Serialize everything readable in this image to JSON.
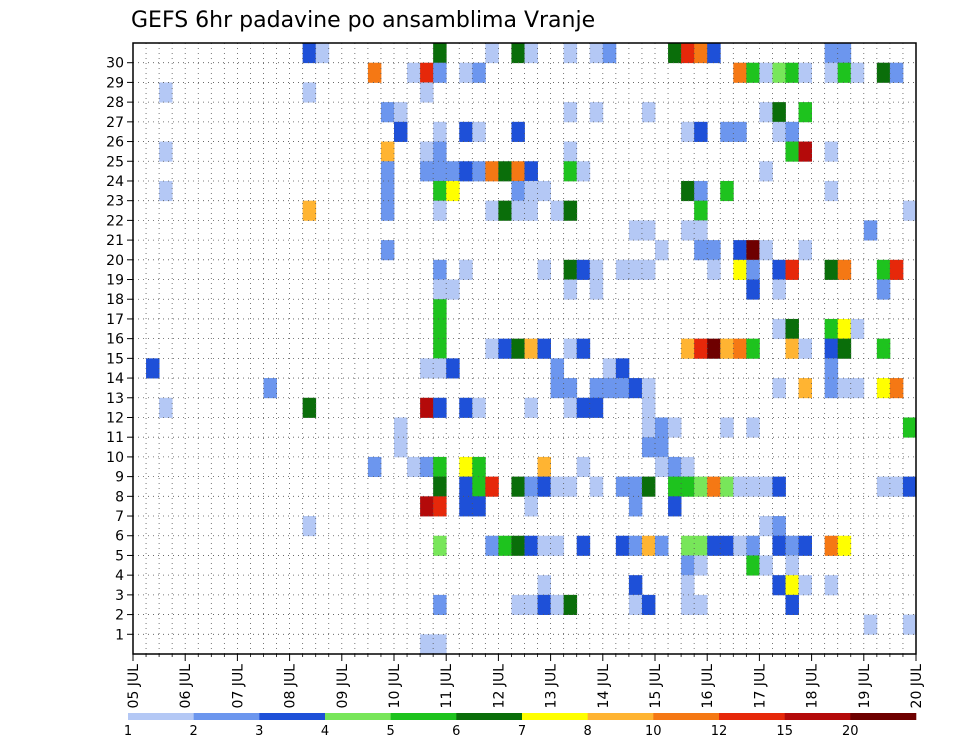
{
  "chart_data": {
    "type": "heatmap",
    "title": "GEFS 6hr padavine po ansamblima Vranje",
    "x_labels": [
      "05 JUL",
      "06 JUL",
      "07 JUL",
      "08 JUL",
      "09 JUL",
      "10 JUL",
      "11 JUL",
      "12 JUL",
      "13 JUL",
      "14 JUL",
      "15 JUL",
      "16 JUL",
      "17 JUL",
      "18 JUL",
      "19 JUL",
      "20 JUL"
    ],
    "x_steps_per_label": 4,
    "y_labels": [
      "1",
      "2",
      "3",
      "4",
      "5",
      "6",
      "7",
      "8",
      "9",
      "10",
      "11",
      "12",
      "13",
      "14",
      "15",
      "16",
      "17",
      "18",
      "19",
      "20",
      "21",
      "22",
      "23",
      "24",
      "25",
      "26",
      "27",
      "28",
      "29",
      "30"
    ],
    "grid": true,
    "legend_position": "bottom",
    "color_levels": [
      {
        "label": "1",
        "color": "#b4c8f5"
      },
      {
        "label": "2",
        "color": "#6c96ee"
      },
      {
        "label": "3",
        "color": "#1e50d8"
      },
      {
        "label": "4",
        "color": "#78e65a"
      },
      {
        "label": "5",
        "color": "#1ec31e"
      },
      {
        "label": "6",
        "color": "#0a6e0a"
      },
      {
        "label": "7",
        "color": "#ffff00"
      },
      {
        "label": "8",
        "color": "#ffb432"
      },
      {
        "label": "10",
        "color": "#f57814"
      },
      {
        "label": "12",
        "color": "#e6280a"
      },
      {
        "label": "15",
        "color": "#b40a0a"
      },
      {
        "label": "20",
        "color": "#6e0000"
      }
    ],
    "colorbar_labels": [
      "1",
      "2",
      "3",
      "4",
      "5",
      "6",
      "7",
      "8",
      "10",
      "12",
      "15",
      "20"
    ],
    "cells_note": "[x_step, member, level_index]",
    "cells": [
      [
        13,
        30,
        2
      ],
      [
        14,
        30,
        0
      ],
      [
        23,
        30,
        5
      ],
      [
        27,
        30,
        0
      ],
      [
        29,
        30,
        5
      ],
      [
        30,
        30,
        0
      ],
      [
        33,
        30,
        0
      ],
      [
        35,
        30,
        0
      ],
      [
        36,
        30,
        1
      ],
      [
        41,
        30,
        5
      ],
      [
        42,
        30,
        9
      ],
      [
        43,
        30,
        8
      ],
      [
        44,
        30,
        2
      ],
      [
        53,
        30,
        1
      ],
      [
        54,
        30,
        1
      ],
      [
        18,
        29,
        8
      ],
      [
        21,
        29,
        0
      ],
      [
        22,
        29,
        9
      ],
      [
        23,
        29,
        1
      ],
      [
        25,
        29,
        0
      ],
      [
        26,
        29,
        1
      ],
      [
        46,
        29,
        8
      ],
      [
        47,
        29,
        4
      ],
      [
        48,
        29,
        0
      ],
      [
        49,
        29,
        3
      ],
      [
        50,
        29,
        4
      ],
      [
        51,
        29,
        0
      ],
      [
        53,
        29,
        0
      ],
      [
        54,
        29,
        4
      ],
      [
        55,
        29,
        0
      ],
      [
        57,
        29,
        5
      ],
      [
        58,
        29,
        1
      ],
      [
        2,
        28,
        0
      ],
      [
        13,
        28,
        0
      ],
      [
        22,
        28,
        0
      ],
      [
        19,
        27,
        1
      ],
      [
        20,
        27,
        0
      ],
      [
        33,
        27,
        0
      ],
      [
        35,
        27,
        0
      ],
      [
        39,
        27,
        0
      ],
      [
        48,
        27,
        0
      ],
      [
        49,
        27,
        5
      ],
      [
        51,
        27,
        4
      ],
      [
        20,
        26,
        2
      ],
      [
        23,
        26,
        0
      ],
      [
        25,
        26,
        2
      ],
      [
        26,
        26,
        0
      ],
      [
        29,
        26,
        2
      ],
      [
        42,
        26,
        0
      ],
      [
        43,
        26,
        2
      ],
      [
        45,
        26,
        1
      ],
      [
        46,
        26,
        1
      ],
      [
        49,
        26,
        0
      ],
      [
        50,
        26,
        1
      ],
      [
        2,
        25,
        0
      ],
      [
        19,
        25,
        7
      ],
      [
        22,
        25,
        0
      ],
      [
        23,
        25,
        1
      ],
      [
        33,
        25,
        0
      ],
      [
        50,
        25,
        4
      ],
      [
        51,
        25,
        10
      ],
      [
        53,
        25,
        0
      ],
      [
        19,
        24,
        1
      ],
      [
        22,
        24,
        1
      ],
      [
        23,
        24,
        1
      ],
      [
        24,
        24,
        1
      ],
      [
        25,
        24,
        2
      ],
      [
        26,
        24,
        1
      ],
      [
        27,
        24,
        8
      ],
      [
        28,
        24,
        5
      ],
      [
        29,
        24,
        8
      ],
      [
        30,
        24,
        2
      ],
      [
        33,
        24,
        4
      ],
      [
        34,
        24,
        0
      ],
      [
        48,
        24,
        0
      ],
      [
        2,
        23,
        0
      ],
      [
        19,
        23,
        1
      ],
      [
        23,
        23,
        4
      ],
      [
        24,
        23,
        6
      ],
      [
        29,
        23,
        1
      ],
      [
        30,
        23,
        0
      ],
      [
        31,
        23,
        0
      ],
      [
        42,
        23,
        5
      ],
      [
        43,
        23,
        1
      ],
      [
        45,
        23,
        4
      ],
      [
        53,
        23,
        0
      ],
      [
        13,
        22,
        7
      ],
      [
        19,
        22,
        1
      ],
      [
        23,
        22,
        0
      ],
      [
        27,
        22,
        0
      ],
      [
        28,
        22,
        5
      ],
      [
        29,
        22,
        0
      ],
      [
        30,
        22,
        0
      ],
      [
        32,
        22,
        0
      ],
      [
        33,
        22,
        5
      ],
      [
        43,
        22,
        4
      ],
      [
        59,
        22,
        0
      ],
      [
        38,
        21,
        0
      ],
      [
        39,
        21,
        0
      ],
      [
        42,
        21,
        0
      ],
      [
        43,
        21,
        0
      ],
      [
        56,
        21,
        1
      ],
      [
        19,
        20,
        1
      ],
      [
        40,
        20,
        0
      ],
      [
        43,
        20,
        1
      ],
      [
        44,
        20,
        1
      ],
      [
        46,
        20,
        2
      ],
      [
        47,
        20,
        11
      ],
      [
        48,
        20,
        0
      ],
      [
        51,
        20,
        0
      ],
      [
        23,
        19,
        1
      ],
      [
        25,
        19,
        0
      ],
      [
        31,
        19,
        0
      ],
      [
        33,
        19,
        5
      ],
      [
        34,
        19,
        2
      ],
      [
        35,
        19,
        0
      ],
      [
        37,
        19,
        0
      ],
      [
        38,
        19,
        0
      ],
      [
        39,
        19,
        0
      ],
      [
        44,
        19,
        0
      ],
      [
        46,
        19,
        6
      ],
      [
        47,
        19,
        1
      ],
      [
        49,
        19,
        2
      ],
      [
        50,
        19,
        9
      ],
      [
        53,
        19,
        5
      ],
      [
        54,
        19,
        8
      ],
      [
        57,
        19,
        4
      ],
      [
        58,
        19,
        9
      ],
      [
        23,
        18,
        0
      ],
      [
        24,
        18,
        0
      ],
      [
        33,
        18,
        0
      ],
      [
        35,
        18,
        0
      ],
      [
        47,
        18,
        2
      ],
      [
        49,
        18,
        0
      ],
      [
        57,
        18,
        1
      ],
      [
        23,
        17,
        4
      ],
      [
        23,
        16,
        4
      ],
      [
        49,
        16,
        0
      ],
      [
        50,
        16,
        5
      ],
      [
        53,
        16,
        4
      ],
      [
        54,
        16,
        6
      ],
      [
        55,
        16,
        0
      ],
      [
        23,
        15,
        4
      ],
      [
        27,
        15,
        0
      ],
      [
        28,
        15,
        2
      ],
      [
        29,
        15,
        5
      ],
      [
        30,
        15,
        7
      ],
      [
        31,
        15,
        2
      ],
      [
        33,
        15,
        0
      ],
      [
        34,
        15,
        2
      ],
      [
        42,
        15,
        7
      ],
      [
        43,
        15,
        9
      ],
      [
        44,
        15,
        11
      ],
      [
        45,
        15,
        7
      ],
      [
        46,
        15,
        8
      ],
      [
        47,
        15,
        4
      ],
      [
        50,
        15,
        7
      ],
      [
        51,
        15,
        0
      ],
      [
        53,
        15,
        2
      ],
      [
        54,
        15,
        5
      ],
      [
        57,
        15,
        4
      ],
      [
        1,
        14,
        2
      ],
      [
        22,
        14,
        0
      ],
      [
        23,
        14,
        0
      ],
      [
        24,
        14,
        2
      ],
      [
        32,
        14,
        1
      ],
      [
        36,
        14,
        0
      ],
      [
        37,
        14,
        2
      ],
      [
        53,
        14,
        1
      ],
      [
        10,
        13,
        1
      ],
      [
        32,
        13,
        1
      ],
      [
        33,
        13,
        1
      ],
      [
        35,
        13,
        1
      ],
      [
        36,
        13,
        1
      ],
      [
        37,
        13,
        1
      ],
      [
        38,
        13,
        2
      ],
      [
        39,
        13,
        0
      ],
      [
        49,
        13,
        0
      ],
      [
        51,
        13,
        7
      ],
      [
        53,
        13,
        1
      ],
      [
        54,
        13,
        0
      ],
      [
        55,
        13,
        0
      ],
      [
        57,
        13,
        6
      ],
      [
        58,
        13,
        8
      ],
      [
        2,
        12,
        0
      ],
      [
        13,
        12,
        5
      ],
      [
        22,
        12,
        10
      ],
      [
        23,
        12,
        2
      ],
      [
        25,
        12,
        2
      ],
      [
        26,
        12,
        0
      ],
      [
        30,
        12,
        0
      ],
      [
        33,
        12,
        0
      ],
      [
        34,
        12,
        2
      ],
      [
        35,
        12,
        2
      ],
      [
        39,
        12,
        0
      ],
      [
        20,
        11,
        0
      ],
      [
        39,
        11,
        0
      ],
      [
        40,
        11,
        1
      ],
      [
        41,
        11,
        0
      ],
      [
        45,
        11,
        0
      ],
      [
        47,
        11,
        0
      ],
      [
        59,
        11,
        4
      ],
      [
        20,
        10,
        0
      ],
      [
        39,
        10,
        1
      ],
      [
        40,
        10,
        1
      ],
      [
        18,
        9,
        1
      ],
      [
        21,
        9,
        0
      ],
      [
        22,
        9,
        1
      ],
      [
        23,
        9,
        4
      ],
      [
        25,
        9,
        6
      ],
      [
        26,
        9,
        4
      ],
      [
        31,
        9,
        7
      ],
      [
        34,
        9,
        0
      ],
      [
        40,
        9,
        0
      ],
      [
        41,
        9,
        1
      ],
      [
        42,
        9,
        0
      ],
      [
        23,
        8,
        5
      ],
      [
        25,
        8,
        2
      ],
      [
        26,
        8,
        4
      ],
      [
        27,
        8,
        9
      ],
      [
        29,
        8,
        5
      ],
      [
        30,
        8,
        1
      ],
      [
        31,
        8,
        2
      ],
      [
        32,
        8,
        0
      ],
      [
        33,
        8,
        0
      ],
      [
        35,
        8,
        0
      ],
      [
        37,
        8,
        1
      ],
      [
        38,
        8,
        1
      ],
      [
        39,
        8,
        5
      ],
      [
        41,
        8,
        4
      ],
      [
        42,
        8,
        4
      ],
      [
        43,
        8,
        3
      ],
      [
        44,
        8,
        8
      ],
      [
        45,
        8,
        3
      ],
      [
        46,
        8,
        0
      ],
      [
        47,
        8,
        0
      ],
      [
        48,
        8,
        0
      ],
      [
        49,
        8,
        2
      ],
      [
        57,
        8,
        0
      ],
      [
        58,
        8,
        0
      ],
      [
        59,
        8,
        2
      ],
      [
        22,
        7,
        10
      ],
      [
        23,
        7,
        9
      ],
      [
        25,
        7,
        2
      ],
      [
        26,
        7,
        2
      ],
      [
        30,
        7,
        0
      ],
      [
        38,
        7,
        1
      ],
      [
        41,
        7,
        2
      ],
      [
        13,
        6,
        0
      ],
      [
        48,
        6,
        0
      ],
      [
        49,
        6,
        1
      ],
      [
        23,
        5,
        3
      ],
      [
        27,
        5,
        1
      ],
      [
        28,
        5,
        4
      ],
      [
        29,
        5,
        5
      ],
      [
        30,
        5,
        2
      ],
      [
        31,
        5,
        0
      ],
      [
        32,
        5,
        0
      ],
      [
        34,
        5,
        2
      ],
      [
        37,
        5,
        2
      ],
      [
        38,
        5,
        1
      ],
      [
        39,
        5,
        7
      ],
      [
        40,
        5,
        1
      ],
      [
        42,
        5,
        3
      ],
      [
        43,
        5,
        3
      ],
      [
        44,
        5,
        2
      ],
      [
        45,
        5,
        2
      ],
      [
        46,
        5,
        0
      ],
      [
        47,
        5,
        1
      ],
      [
        49,
        5,
        2
      ],
      [
        50,
        5,
        1
      ],
      [
        51,
        5,
        2
      ],
      [
        53,
        5,
        8
      ],
      [
        54,
        5,
        6
      ],
      [
        42,
        4,
        1
      ],
      [
        43,
        4,
        0
      ],
      [
        47,
        4,
        4
      ],
      [
        48,
        4,
        0
      ],
      [
        50,
        4,
        0
      ],
      [
        31,
        3,
        0
      ],
      [
        38,
        3,
        2
      ],
      [
        42,
        3,
        0
      ],
      [
        49,
        3,
        2
      ],
      [
        50,
        3,
        6
      ],
      [
        51,
        3,
        0
      ],
      [
        53,
        3,
        0
      ],
      [
        23,
        2,
        1
      ],
      [
        29,
        2,
        0
      ],
      [
        30,
        2,
        0
      ],
      [
        31,
        2,
        2
      ],
      [
        32,
        2,
        0
      ],
      [
        33,
        2,
        5
      ],
      [
        38,
        2,
        0
      ],
      [
        39,
        2,
        2
      ],
      [
        42,
        2,
        0
      ],
      [
        43,
        2,
        0
      ],
      [
        50,
        2,
        2
      ],
      [
        56,
        1,
        0
      ],
      [
        59,
        1,
        0
      ],
      [
        22,
        0,
        0
      ],
      [
        23,
        0,
        0
      ]
    ]
  }
}
